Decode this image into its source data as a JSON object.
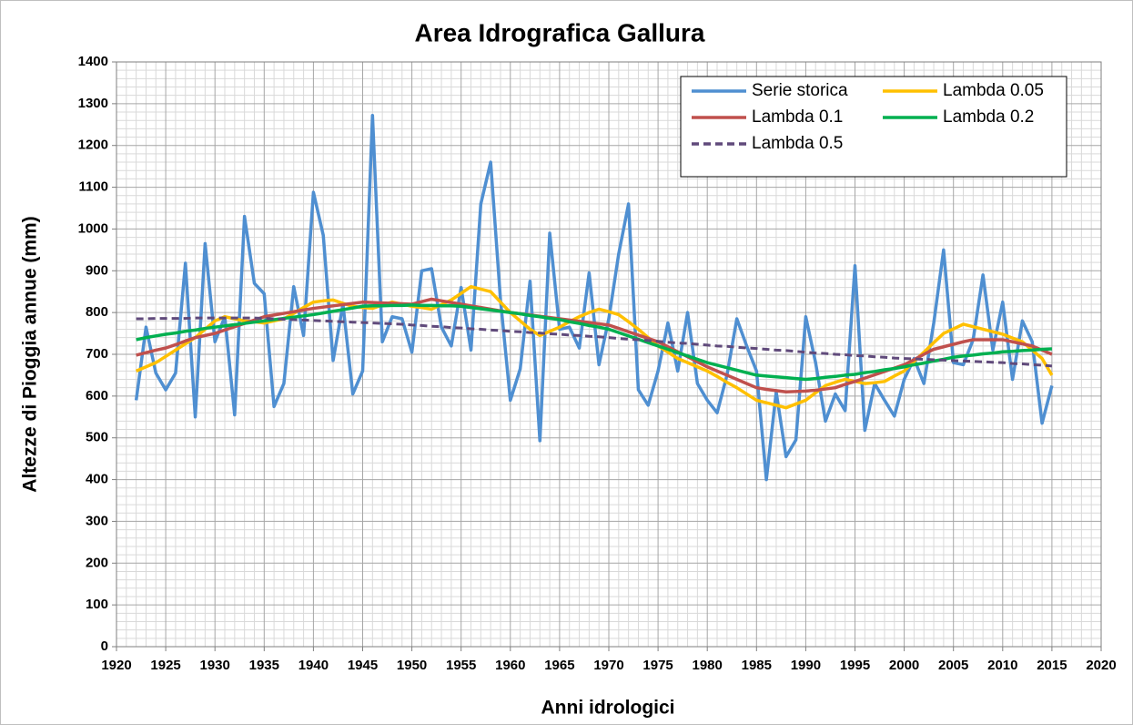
{
  "chart_data": {
    "type": "line",
    "title": "Area Idrografica Gallura",
    "xlabel": "Anni idrologici",
    "ylabel": "Altezze di Pioggia annue (mm)",
    "x": [
      1922,
      1923,
      1924,
      1925,
      1926,
      1927,
      1928,
      1929,
      1930,
      1931,
      1932,
      1933,
      1934,
      1935,
      1936,
      1937,
      1938,
      1939,
      1940,
      1941,
      1942,
      1943,
      1944,
      1945,
      1946,
      1947,
      1948,
      1949,
      1950,
      1951,
      1952,
      1953,
      1954,
      1955,
      1956,
      1957,
      1958,
      1959,
      1960,
      1961,
      1962,
      1963,
      1964,
      1965,
      1966,
      1967,
      1968,
      1969,
      1970,
      1971,
      1972,
      1973,
      1974,
      1975,
      1976,
      1977,
      1978,
      1979,
      1980,
      1981,
      1982,
      1983,
      1984,
      1985,
      1986,
      1987,
      1988,
      1989,
      1990,
      1991,
      1992,
      1993,
      1994,
      1995,
      1996,
      1997,
      1998,
      1999,
      2000,
      2001,
      2002,
      2003,
      2004,
      2005,
      2006,
      2007,
      2008,
      2009,
      2010,
      2011,
      2012,
      2013,
      2014,
      2015
    ],
    "series": [
      {
        "name": "Serie storica",
        "color": "#4f8fd1",
        "style": "solid",
        "values": [
          590,
          765,
          655,
          615,
          655,
          918,
          550,
          965,
          730,
          790,
          555,
          1030,
          870,
          845,
          575,
          630,
          862,
          745,
          1088,
          985,
          685,
          820,
          605,
          660,
          1272,
          730,
          790,
          785,
          705,
          900,
          905,
          765,
          720,
          860,
          710,
          1060,
          1160,
          830,
          590,
          665,
          875,
          493,
          990,
          760,
          765,
          715,
          895,
          675,
          785,
          940,
          1060,
          615,
          578,
          660,
          775,
          660,
          800,
          630,
          590,
          560,
          650,
          785,
          720,
          660,
          400,
          610,
          455,
          495,
          790,
          680,
          540,
          605,
          565,
          912,
          518,
          630,
          590,
          552,
          640,
          690,
          630,
          775,
          950,
          680,
          675,
          735,
          890,
          710,
          825,
          640,
          780,
          730,
          535,
          625
        ]
      },
      {
        "name": "Lambda 0.05",
        "color": "#ffc000",
        "style": "solid",
        "values": [
          660,
          670,
          680,
          695,
          710,
          725,
          740,
          760,
          780,
          790,
          785,
          780,
          778,
          775,
          780,
          785,
          798,
          812,
          825,
          828,
          830,
          822,
          815,
          812,
          810,
          818,
          825,
          820,
          815,
          812,
          808,
          819,
          830,
          846,
          862,
          856,
          850,
          825,
          800,
          780,
          760,
          745,
          755,
          765,
          778,
          790,
          800,
          808,
          802,
          795,
          778,
          760,
          740,
          720,
          705,
          690,
          680,
          670,
          660,
          647,
          633,
          620,
          605,
          590,
          584,
          578,
          572,
          581,
          590,
          608,
          625,
          633,
          640,
          635,
          630,
          632,
          635,
          648,
          660,
          683,
          705,
          728,
          750,
          761,
          772,
          766,
          760,
          754,
          748,
          739,
          730,
          710,
          690,
          650
        ]
      },
      {
        "name": "Lambda 0.1",
        "color": "#c0504d",
        "style": "solid",
        "values": [
          698,
          704,
          710,
          715,
          723,
          732,
          740,
          745,
          750,
          758,
          766,
          774,
          782,
          790,
          794,
          798,
          802,
          806,
          810,
          813,
          816,
          819,
          822,
          825,
          824,
          823,
          822,
          821,
          820,
          826,
          832,
          828,
          824,
          820,
          816,
          812,
          808,
          804,
          800,
          797,
          794,
          791,
          788,
          785,
          782,
          779,
          776,
          773,
          770,
          762,
          754,
          746,
          738,
          730,
          718,
          706,
          694,
          682,
          670,
          660,
          650,
          640,
          630,
          620,
          616,
          613,
          610,
          611,
          612,
          614,
          617,
          620,
          628,
          635,
          643,
          651,
          659,
          667,
          675,
          687,
          700,
          712,
          718,
          724,
          730,
          735,
          735,
          735,
          735,
          730,
          725,
          720,
          710,
          700
        ]
      },
      {
        "name": "Lambda 0.2",
        "color": "#00b050",
        "style": "solid",
        "values": [
          735,
          740,
          744,
          748,
          751,
          755,
          758,
          762,
          765,
          768,
          771,
          774,
          777,
          780,
          783,
          786,
          789,
          792,
          795,
          799,
          803,
          807,
          811,
          815,
          816,
          816,
          817,
          817,
          818,
          817,
          817,
          816,
          816,
          815,
          812,
          809,
          806,
          803,
          800,
          797,
          793,
          790,
          786,
          783,
          778,
          774,
          769,
          765,
          760,
          752,
          744,
          736,
          728,
          720,
          712,
          704,
          696,
          688,
          680,
          674,
          668,
          662,
          656,
          650,
          648,
          646,
          644,
          642,
          640,
          642,
          645,
          647,
          650,
          652,
          656,
          659,
          663,
          666,
          670,
          675,
          679,
          684,
          688,
          693,
          696,
          698,
          701,
          703,
          706,
          707,
          709,
          710,
          712,
          713
        ]
      },
      {
        "name": "Lambda 0.5",
        "color": "#604a7b",
        "style": "dashed",
        "values": [
          785,
          785,
          786,
          786,
          786,
          786,
          787,
          787,
          787,
          787,
          787,
          787,
          787,
          786,
          785,
          784,
          783,
          782,
          781,
          780,
          779,
          778,
          777,
          776,
          775,
          774,
          773,
          772,
          770,
          769,
          767,
          766,
          764,
          763,
          761,
          760,
          758,
          757,
          755,
          754,
          752,
          751,
          749,
          748,
          746,
          745,
          743,
          742,
          740,
          738,
          736,
          735,
          733,
          731,
          729,
          727,
          726,
          724,
          722,
          720,
          719,
          717,
          715,
          714,
          712,
          710,
          709,
          707,
          705,
          703,
          702,
          700,
          699,
          697,
          696,
          694,
          693,
          691,
          690,
          689,
          688,
          687,
          686,
          685,
          684,
          683,
          682,
          681,
          680,
          678,
          677,
          675,
          674,
          672
        ]
      }
    ],
    "xlim": [
      1920,
      2020
    ],
    "xticks": [
      1920,
      1925,
      1930,
      1935,
      1940,
      1945,
      1950,
      1955,
      1960,
      1965,
      1970,
      1975,
      1980,
      1985,
      1990,
      1995,
      2000,
      2005,
      2010,
      2015,
      2020
    ],
    "ylim": [
      0,
      1400
    ],
    "yticks": [
      0,
      100,
      200,
      300,
      400,
      500,
      600,
      700,
      800,
      900,
      1000,
      1100,
      1200,
      1300,
      1400
    ],
    "grid": true,
    "legend": "top-right"
  }
}
